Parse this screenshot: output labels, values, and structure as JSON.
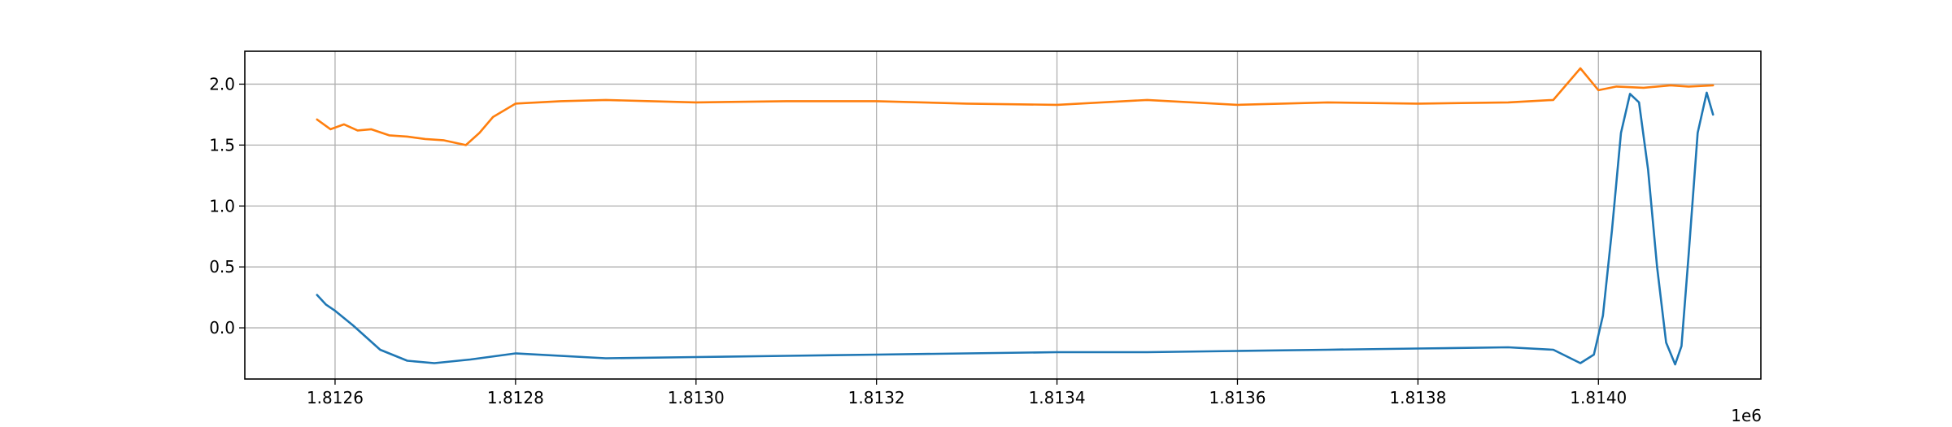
{
  "chart_data": {
    "type": "line",
    "title": "",
    "xlabel": "",
    "ylabel": "",
    "x_offset_label": "1e6",
    "xlim": [
      1812500,
      1814180
    ],
    "ylim": [
      -0.42,
      2.27
    ],
    "grid": true,
    "x_ticks": [
      1812600,
      1812800,
      1813000,
      1813200,
      1813400,
      1813600,
      1813800,
      1814000
    ],
    "x_tick_labels": [
      "1.8126",
      "1.8128",
      "1.8130",
      "1.8132",
      "1.8134",
      "1.8136",
      "1.8138",
      "1.8140"
    ],
    "y_ticks": [
      0.0,
      0.5,
      1.0,
      1.5,
      2.0
    ],
    "y_tick_labels": [
      "0.0",
      "0.5",
      "1.0",
      "1.5",
      "2.0"
    ],
    "series": [
      {
        "color": "#1f77b4",
        "x": [
          1812580,
          1812590,
          1812600,
          1812620,
          1812650,
          1812680,
          1812710,
          1812750,
          1812800,
          1812900,
          1813000,
          1813100,
          1813200,
          1813300,
          1813400,
          1813500,
          1813600,
          1813700,
          1813800,
          1813900,
          1813950,
          1813980,
          1813995,
          1814005,
          1814015,
          1814025,
          1814035,
          1814045,
          1814055,
          1814065,
          1814075,
          1814085,
          1814092,
          1814100,
          1814110,
          1814120,
          1814127
        ],
        "y": [
          0.27,
          0.19,
          0.14,
          0.02,
          -0.18,
          -0.27,
          -0.29,
          -0.26,
          -0.21,
          -0.25,
          -0.24,
          -0.23,
          -0.22,
          -0.21,
          -0.2,
          -0.2,
          -0.19,
          -0.18,
          -0.17,
          -0.16,
          -0.18,
          -0.29,
          -0.22,
          0.1,
          0.8,
          1.6,
          1.92,
          1.85,
          1.3,
          0.5,
          -0.12,
          -0.3,
          -0.15,
          0.6,
          1.6,
          1.93,
          1.75
        ]
      },
      {
        "color": "#ff7f0e",
        "x": [
          1812580,
          1812595,
          1812610,
          1812625,
          1812640,
          1812660,
          1812680,
          1812700,
          1812720,
          1812745,
          1812760,
          1812775,
          1812800,
          1812850,
          1812900,
          1812950,
          1813000,
          1813100,
          1813200,
          1813300,
          1813400,
          1813500,
          1813600,
          1813700,
          1813800,
          1813900,
          1813950,
          1813980,
          1814000,
          1814020,
          1814050,
          1814080,
          1814100,
          1814127
        ],
        "y": [
          1.71,
          1.63,
          1.67,
          1.62,
          1.63,
          1.58,
          1.57,
          1.55,
          1.54,
          1.5,
          1.6,
          1.73,
          1.84,
          1.86,
          1.87,
          1.86,
          1.85,
          1.86,
          1.86,
          1.84,
          1.83,
          1.87,
          1.83,
          1.85,
          1.84,
          1.85,
          1.87,
          2.13,
          1.95,
          1.98,
          1.97,
          1.99,
          1.98,
          1.99
        ]
      }
    ]
  }
}
